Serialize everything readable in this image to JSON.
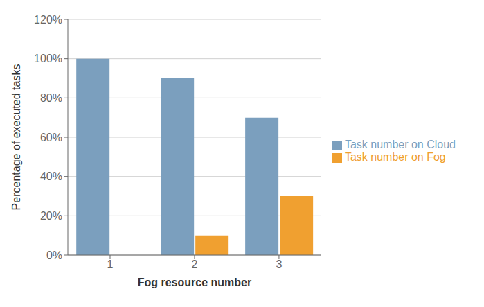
{
  "chart_data": {
    "type": "bar",
    "categories": [
      "1",
      "2",
      "3"
    ],
    "series": [
      {
        "name": "Task number on Cloud",
        "color": "#7b9fbe",
        "values": [
          100,
          90,
          70
        ]
      },
      {
        "name": "Task number on Fog",
        "color": "#f0a030",
        "values": [
          0,
          10,
          30
        ]
      }
    ],
    "xlabel": "Fog resource number",
    "ylabel": "Percentage of executed tasks",
    "ylim": [
      0,
      120
    ],
    "yticks": [
      {
        "value": 0,
        "label": "0%"
      },
      {
        "value": 20,
        "label": "20%"
      },
      {
        "value": 40,
        "label": "40%"
      },
      {
        "value": 60,
        "label": "60%"
      },
      {
        "value": 80,
        "label": "80%"
      },
      {
        "value": 100,
        "label": "100%"
      },
      {
        "value": 120,
        "label": "120%"
      }
    ],
    "grid": true,
    "legend": "right"
  }
}
